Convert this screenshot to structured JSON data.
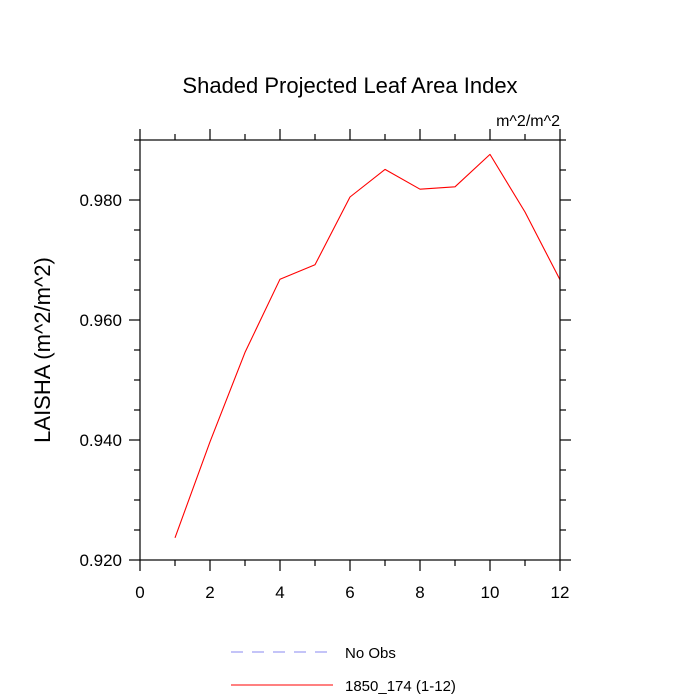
{
  "chart_data": {
    "type": "line",
    "title": "Shaded Projected Leaf Area Index",
    "units_label": "m^2/m^2",
    "xlabel": "",
    "ylabel": "LAISHA  (m^2/m^2)",
    "xlim": [
      0,
      12
    ],
    "ylim": [
      0.92,
      0.99
    ],
    "x_ticks": [
      0,
      2,
      4,
      6,
      8,
      10,
      12
    ],
    "x_tick_labels": [
      "0",
      "2",
      "4",
      "6",
      "8",
      "10",
      "12"
    ],
    "y_ticks": [
      0.92,
      0.94,
      0.96,
      0.98
    ],
    "y_tick_labels": [
      "0.920",
      "0.940",
      "0.960",
      "0.980"
    ],
    "x_minor_step": 1,
    "y_minor_step": 0.005,
    "series": [
      {
        "name": "1850_174 (1-12)",
        "color": "#ff0000",
        "dash": "solid",
        "x": [
          1,
          2,
          3,
          4,
          5,
          6,
          7,
          8,
          9,
          10,
          11,
          12
        ],
        "values": [
          0.9237,
          0.9397,
          0.9546,
          0.9668,
          0.9692,
          0.9805,
          0.9851,
          0.9818,
          0.9822,
          0.9876,
          0.978,
          0.9667
        ]
      }
    ],
    "legend": [
      {
        "label": "No Obs",
        "color": "#8a8af0",
        "dash": "dashed"
      },
      {
        "label": "1850_174 (1-12)",
        "color": "#ff0000",
        "dash": "solid"
      }
    ],
    "legend_position": "bottom"
  }
}
